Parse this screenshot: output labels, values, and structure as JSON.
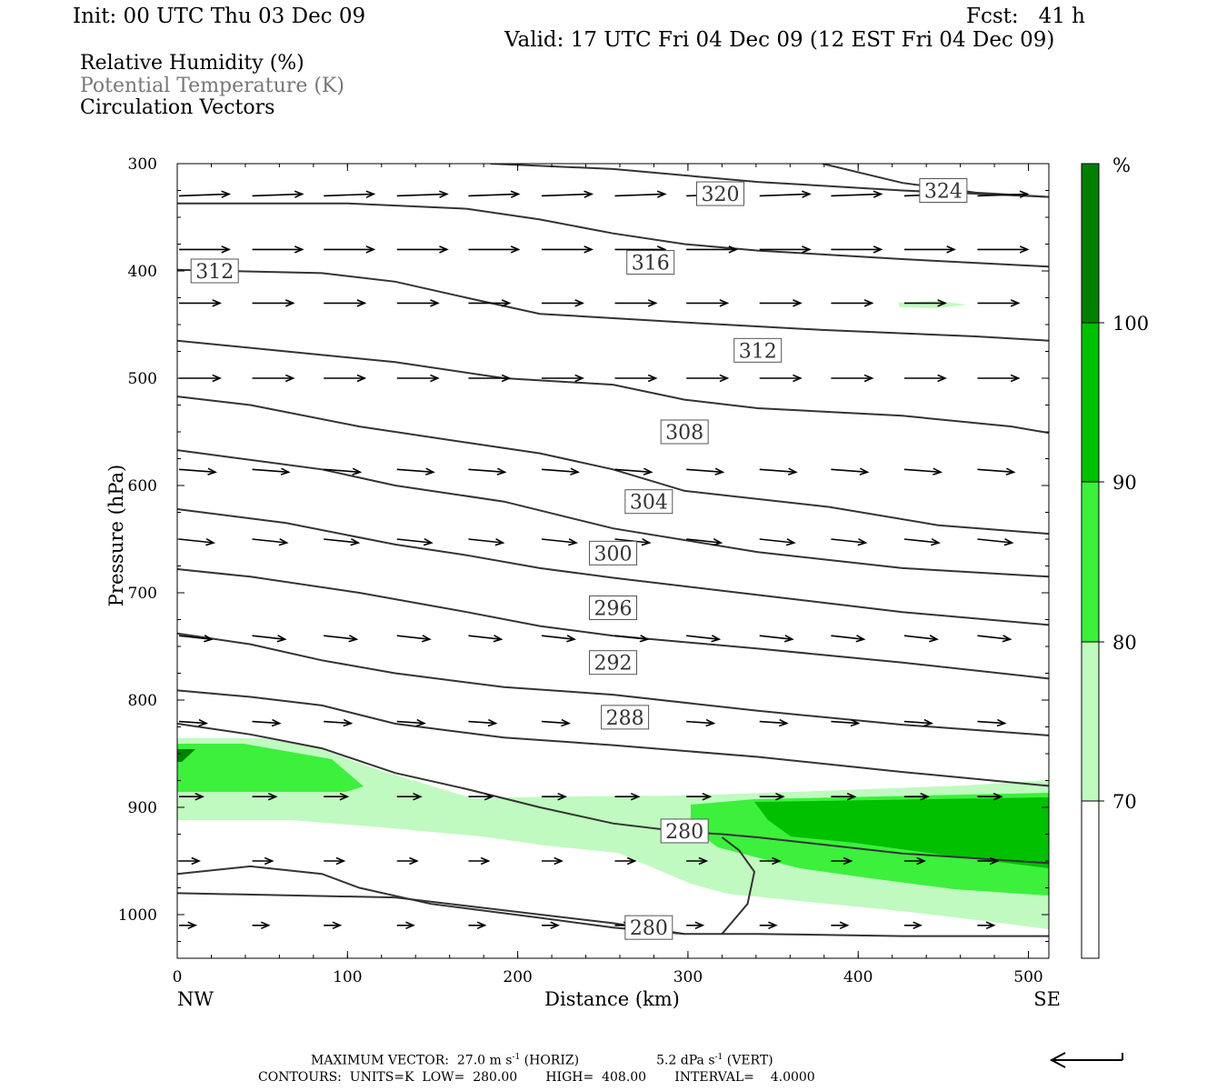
{
  "header": {
    "init": "Init: 00 UTC Thu 03 Dec 09",
    "fcst": "Fcst:   41 h",
    "valid": "Valid: 17 UTC Fri 04 Dec 09 (12 EST Fri 04 Dec 09)"
  },
  "fields": {
    "rh": "Relative Humidity (%)",
    "theta": "Potential Temperature (K)",
    "circ": "Circulation Vectors"
  },
  "colors": {
    "theta_line": "#333333",
    "rh_70": "#c0fac0",
    "rh_80": "#3cf03c",
    "rh_90": "#00c000",
    "rh_100": "#008000",
    "vector": "#000000"
  },
  "footer": {
    "line1_a": "MAXIMUM VECTOR:  27.0 m s",
    "line1_b": "-1",
    "line1_c": " (HORIZ)",
    "line1_d": "5.2 dPa s",
    "line1_e": "-1",
    "line1_f": " (VERT)",
    "line2": "CONTOURS:  UNITS=K  LOW=  280.00       HIGH=  408.00       INTERVAL=    4.0000"
  },
  "chart_data": {
    "type": "contour",
    "xlabel": "Distance (km)",
    "ylabel": "Pressure (hPa)",
    "xlim": [
      0,
      512
    ],
    "ylim": [
      1040,
      300
    ],
    "x_ticks": [
      0,
      100,
      200,
      300,
      400,
      500
    ],
    "y_ticks": [
      300,
      400,
      500,
      600,
      700,
      800,
      900,
      1000
    ],
    "x_end_labels": {
      "left": "NW",
      "right": "SE"
    },
    "colorbar": {
      "unit": "%",
      "levels": [
        70,
        80,
        90,
        100
      ]
    },
    "theta_labels": [
      {
        "text": "324",
        "x": 450,
        "p": 325
      },
      {
        "text": "320",
        "x": 319,
        "p": 328
      },
      {
        "text": "316",
        "x": 278,
        "p": 392
      },
      {
        "text": "312",
        "x": 22,
        "p": 400
      },
      {
        "text": "312",
        "x": 341,
        "p": 474
      },
      {
        "text": "308",
        "x": 298,
        "p": 550
      },
      {
        "text": "304",
        "x": 277,
        "p": 615
      },
      {
        "text": "300",
        "x": 256,
        "p": 663
      },
      {
        "text": "296",
        "x": 256,
        "p": 714
      },
      {
        "text": "292",
        "x": 256,
        "p": 765
      },
      {
        "text": "288",
        "x": 263,
        "p": 816
      },
      {
        "text": "280",
        "x": 298,
        "p": 922
      },
      {
        "text": "280",
        "x": 277,
        "p": 1012
      }
    ],
    "theta_contours": [
      {
        "pts": [
          [
            184,
            300
          ],
          [
            256,
            305
          ],
          [
            341,
            317
          ],
          [
            426,
            325
          ],
          [
            512,
            331
          ]
        ]
      },
      {
        "pts": [
          [
            379,
            300
          ],
          [
            426,
            318
          ],
          [
            469,
            327
          ],
          [
            512,
            331
          ]
        ]
      },
      {
        "pts": [
          [
            0,
            337
          ],
          [
            100,
            337
          ],
          [
            170,
            342
          ],
          [
            213,
            352
          ],
          [
            256,
            365
          ],
          [
            298,
            375
          ],
          [
            341,
            381
          ],
          [
            426,
            389
          ],
          [
            512,
            396
          ]
        ]
      },
      {
        "pts": [
          [
            0,
            399
          ],
          [
            85,
            402
          ],
          [
            128,
            410
          ],
          [
            170,
            425
          ],
          [
            213,
            440
          ],
          [
            298,
            448
          ],
          [
            379,
            455
          ],
          [
            469,
            461
          ],
          [
            512,
            465
          ]
        ]
      },
      {
        "pts": [
          [
            0,
            465
          ],
          [
            64,
            475
          ],
          [
            128,
            485
          ],
          [
            192,
            500
          ],
          [
            256,
            506
          ],
          [
            298,
            520
          ],
          [
            341,
            528
          ],
          [
            426,
            535
          ],
          [
            490,
            545
          ],
          [
            512,
            551
          ]
        ]
      },
      {
        "pts": [
          [
            0,
            517
          ],
          [
            43,
            525
          ],
          [
            107,
            545
          ],
          [
            170,
            560
          ],
          [
            213,
            570
          ],
          [
            256,
            585
          ],
          [
            298,
            605
          ],
          [
            383,
            620
          ],
          [
            447,
            637
          ],
          [
            512,
            645
          ]
        ]
      },
      {
        "pts": [
          [
            0,
            567
          ],
          [
            85,
            585
          ],
          [
            128,
            600
          ],
          [
            192,
            615
          ],
          [
            256,
            640
          ],
          [
            341,
            662
          ],
          [
            426,
            677
          ],
          [
            512,
            685
          ]
        ]
      },
      {
        "pts": [
          [
            0,
            622
          ],
          [
            64,
            635
          ],
          [
            128,
            655
          ],
          [
            170,
            665
          ],
          [
            213,
            677
          ],
          [
            256,
            686
          ],
          [
            341,
            702
          ],
          [
            426,
            718
          ],
          [
            512,
            730
          ]
        ]
      },
      {
        "pts": [
          [
            0,
            678
          ],
          [
            43,
            685
          ],
          [
            107,
            700
          ],
          [
            170,
            718
          ],
          [
            213,
            731
          ],
          [
            256,
            740
          ],
          [
            341,
            752
          ],
          [
            426,
            765
          ],
          [
            512,
            780
          ]
        ]
      },
      {
        "pts": [
          [
            0,
            738
          ],
          [
            43,
            748
          ],
          [
            85,
            763
          ],
          [
            128,
            775
          ],
          [
            192,
            788
          ],
          [
            256,
            795
          ],
          [
            341,
            810
          ],
          [
            426,
            823
          ],
          [
            512,
            833
          ]
        ]
      },
      {
        "pts": [
          [
            0,
            791
          ],
          [
            43,
            797
          ],
          [
            85,
            805
          ],
          [
            128,
            822
          ],
          [
            192,
            835
          ],
          [
            256,
            842
          ],
          [
            341,
            853
          ],
          [
            426,
            867
          ],
          [
            512,
            880
          ]
        ]
      },
      {
        "pts": [
          [
            0,
            822
          ],
          [
            43,
            832
          ],
          [
            85,
            845
          ],
          [
            128,
            868
          ],
          [
            170,
            883
          ],
          [
            213,
            900
          ],
          [
            256,
            915
          ],
          [
            298,
            923
          ],
          [
            320,
            925
          ],
          [
            341,
            928
          ],
          [
            426,
            943
          ],
          [
            512,
            952
          ]
        ]
      },
      {
        "pts": [
          [
            0,
            962
          ],
          [
            43,
            955
          ],
          [
            85,
            962
          ],
          [
            107,
            975
          ],
          [
            149,
            990
          ],
          [
            213,
            1003
          ],
          [
            256,
            1012
          ],
          [
            298,
            1018
          ],
          [
            341,
            1018
          ],
          [
            426,
            1020
          ],
          [
            512,
            1020
          ]
        ]
      },
      {
        "pts": [
          [
            320,
            928
          ],
          [
            330,
            940
          ],
          [
            339,
            960
          ],
          [
            335,
            990
          ],
          [
            320,
            1018
          ]
        ]
      },
      {
        "pts": [
          [
            0,
            980
          ],
          [
            128,
            984
          ],
          [
            256,
            1008
          ],
          [
            298,
            1018
          ]
        ]
      }
    ]
  }
}
